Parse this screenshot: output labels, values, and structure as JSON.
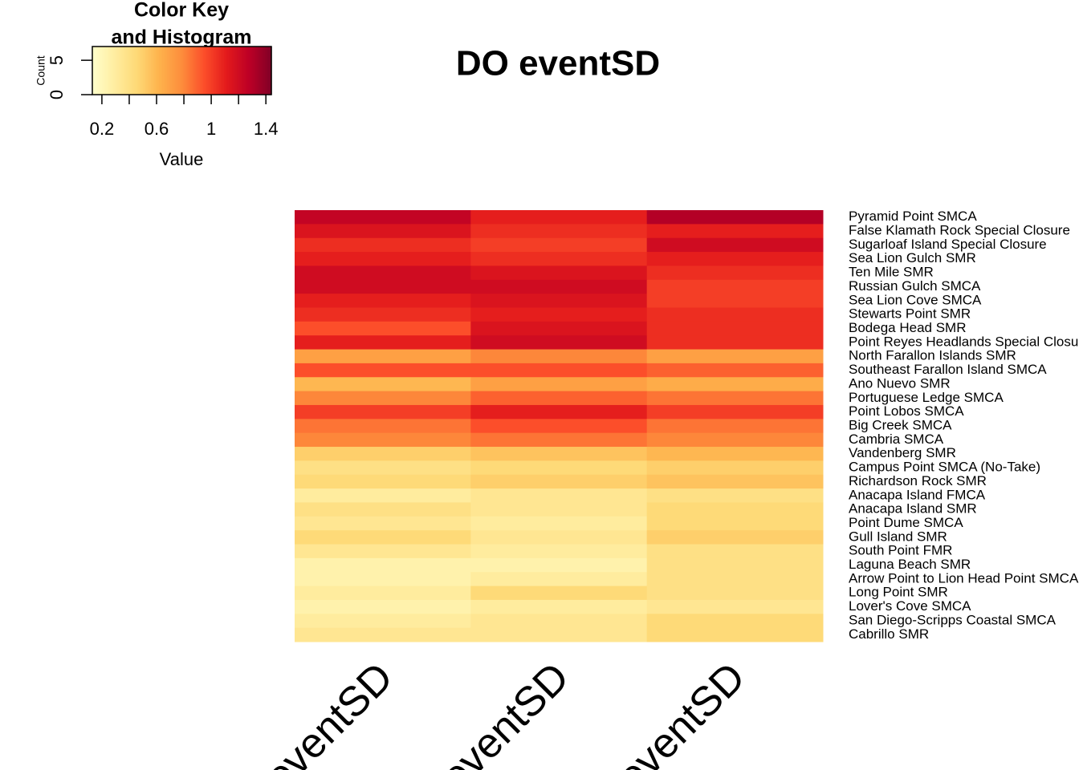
{
  "chart_data": {
    "type": "heatmap",
    "title": "DO eventSD",
    "columns": [
      "eventSD",
      "eventSD",
      "eventSD"
    ],
    "rows": [
      "Pyramid Point SMCA",
      "False Klamath Rock Special Closure",
      "Sugarloaf Island Special Closure",
      "Sea Lion Gulch SMR",
      "Ten Mile SMR",
      "Russian Gulch SMCA",
      "Sea Lion Cove SMCA",
      "Stewarts Point SMR",
      "Bodega Head SMR",
      "Point Reyes Headlands Special Closure",
      "North Farallon Islands SMR",
      "Southeast Farallon Island SMCA",
      "Ano Nuevo SMR",
      "Portuguese Ledge SMCA",
      "Point Lobos SMCA",
      "Big Creek SMCA",
      "Cambria SMCA",
      "Vandenberg SMR",
      "Campus Point SMCA (No-Take)",
      "Richardson Rock SMR",
      "Anacapa Island FMCA",
      "Anacapa Island SMR",
      "Point Dume SMCA",
      "Gull Island SMR",
      "South Point FMR",
      "Laguna Beach SMR",
      "Arrow Point to Lion Head Point SMCA",
      "Long Point SMR",
      "Lover's Cove SMCA",
      "San Diego-Scripps Coastal SMCA",
      "Cabrillo SMR"
    ],
    "values": [
      [
        1.25,
        1.1,
        1.3
      ],
      [
        1.15,
        1.05,
        1.1
      ],
      [
        1.05,
        1.0,
        1.2
      ],
      [
        1.1,
        1.05,
        1.1
      ],
      [
        1.2,
        1.15,
        1.05
      ],
      [
        1.2,
        1.2,
        1.0
      ],
      [
        1.1,
        1.15,
        1.0
      ],
      [
        1.05,
        1.1,
        1.05
      ],
      [
        0.95,
        1.15,
        1.05
      ],
      [
        1.1,
        1.2,
        1.05
      ],
      [
        0.7,
        0.8,
        0.7
      ],
      [
        0.95,
        0.95,
        0.9
      ],
      [
        0.6,
        0.7,
        0.65
      ],
      [
        0.8,
        0.9,
        0.85
      ],
      [
        1.0,
        1.1,
        1.0
      ],
      [
        0.85,
        0.95,
        0.85
      ],
      [
        0.8,
        0.85,
        0.8
      ],
      [
        0.5,
        0.55,
        0.6
      ],
      [
        0.4,
        0.45,
        0.5
      ],
      [
        0.45,
        0.5,
        0.55
      ],
      [
        0.3,
        0.35,
        0.4
      ],
      [
        0.4,
        0.35,
        0.45
      ],
      [
        0.35,
        0.3,
        0.45
      ],
      [
        0.45,
        0.35,
        0.5
      ],
      [
        0.35,
        0.3,
        0.4
      ],
      [
        0.25,
        0.25,
        0.4
      ],
      [
        0.25,
        0.3,
        0.4
      ],
      [
        0.3,
        0.45,
        0.4
      ],
      [
        0.25,
        0.3,
        0.35
      ],
      [
        0.3,
        0.35,
        0.45
      ],
      [
        0.35,
        0.35,
        0.45
      ]
    ],
    "colors": [
      "#ffffcc",
      "#ffeda0",
      "#fed976",
      "#feb24c",
      "#fd8d3c",
      "#fc4e2a",
      "#e31a1c",
      "#bd0026",
      "#800026"
    ],
    "zlim": [
      0.13,
      1.44
    ],
    "key": {
      "title": [
        "Color Key",
        "and Histogram"
      ],
      "xlabel": "Value",
      "xticks": [
        0.2,
        0.6,
        1,
        1.4
      ],
      "xminor": [
        0.4,
        0.8,
        1.2
      ],
      "ylabel": "Count",
      "ylim": [
        0,
        7
      ],
      "yticks": [
        0,
        5
      ]
    }
  }
}
